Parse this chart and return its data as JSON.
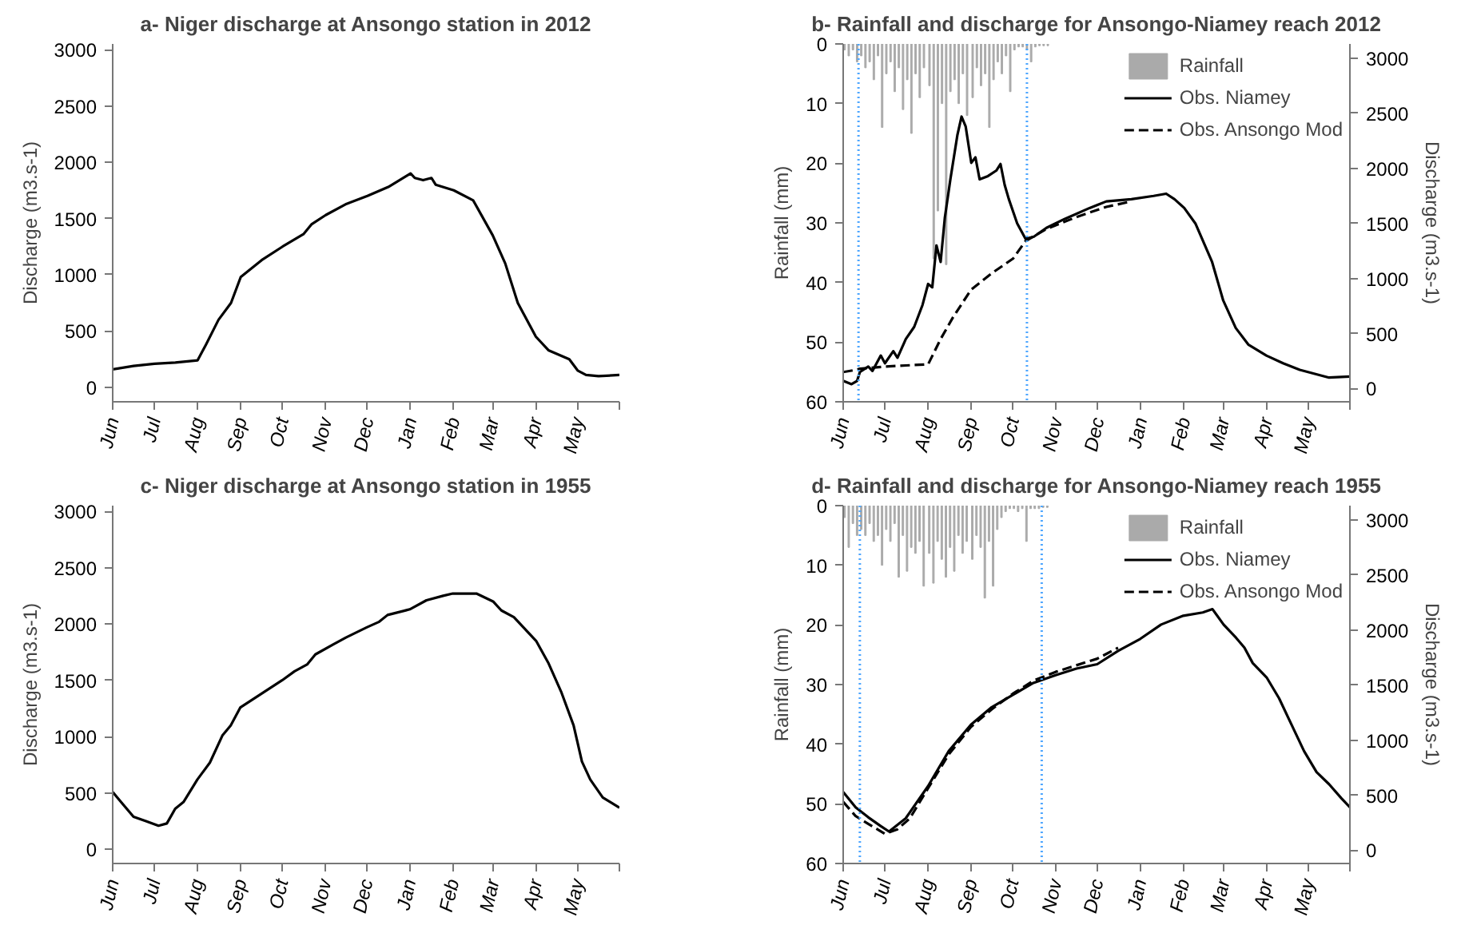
{
  "chart_data": [
    {
      "type": "line",
      "title": "a- Niger discharge at Ansongo station in 2012",
      "ylabel": "Discharge (m3.s-1)",
      "xlim": [
        "2012-06-01",
        "2013-05-31"
      ],
      "xticks": [
        {
          "value": "2012-06-01",
          "label": "Jun"
        },
        {
          "value": "2012-07-01",
          "label": "Jul"
        },
        {
          "value": "2012-08-01",
          "label": "Aug"
        },
        {
          "value": "2012-09-01",
          "label": "Sep"
        },
        {
          "value": "2012-10-01",
          "label": "Oct"
        },
        {
          "value": "2012-11-01",
          "label": "Nov"
        },
        {
          "value": "2012-12-01",
          "label": "Dec"
        },
        {
          "value": "2013-01-01",
          "label": "Jan"
        },
        {
          "value": "2013-02-01",
          "label": "Feb"
        },
        {
          "value": "2013-03-01",
          "label": "Mar"
        },
        {
          "value": "2013-04-01",
          "label": "Apr"
        },
        {
          "value": "2013-05-01",
          "label": "May"
        },
        {
          "value": "2013-05-31",
          "label": null
        }
      ],
      "ylim": [
        -128,
        3050
      ],
      "yticks": [
        0,
        500,
        1000,
        1500,
        2000,
        2500,
        3000
      ],
      "series": [
        {
          "color": "#000000",
          "x": [
            "2012-06-01",
            "2012-06-16",
            "2012-07-01",
            "2012-07-16",
            "2012-08-01",
            "2012-08-07",
            "2012-08-16",
            "2012-08-25",
            "2012-09-01",
            "2012-09-16",
            "2012-10-01",
            "2012-10-16",
            "2012-10-22",
            "2012-11-01",
            "2012-11-16",
            "2012-12-01",
            "2012-12-16",
            "2013-01-01",
            "2013-01-04",
            "2013-01-10",
            "2013-01-16",
            "2013-01-19",
            "2013-02-01",
            "2013-02-15",
            "2013-03-01",
            "2013-03-10",
            "2013-03-19",
            "2013-04-01",
            "2013-04-10",
            "2013-04-25",
            "2013-05-01",
            "2013-05-07",
            "2013-05-16",
            "2013-05-31"
          ],
          "values": [
            160,
            190,
            210,
            220,
            240,
            380,
            600,
            750,
            980,
            1130,
            1250,
            1360,
            1450,
            1530,
            1630,
            1700,
            1780,
            1900,
            1860,
            1840,
            1860,
            1800,
            1750,
            1660,
            1350,
            1100,
            750,
            450,
            330,
            250,
            150,
            110,
            100,
            110
          ]
        }
      ]
    },
    {
      "type": "line",
      "title": "b- Rainfall and discharge for Ansongo-Niamey reach 2012",
      "ylabel": "Rainfall (mm)",
      "y2label": "Discharge (m3.s-1)",
      "legend": "top right",
      "xlim": [
        "2012-06-01",
        "2013-05-31"
      ],
      "xticks": [
        {
          "value": "2012-06-01",
          "label": "Jun"
        },
        {
          "value": "2012-07-01",
          "label": "Jul"
        },
        {
          "value": "2012-08-01",
          "label": "Aug"
        },
        {
          "value": "2012-09-01",
          "label": "Sep"
        },
        {
          "value": "2012-10-01",
          "label": "Oct"
        },
        {
          "value": "2012-11-01",
          "label": "Nov"
        },
        {
          "value": "2012-12-01",
          "label": "Dec"
        },
        {
          "value": "2013-01-01",
          "label": "Jan"
        },
        {
          "value": "2013-02-01",
          "label": "Feb"
        },
        {
          "value": "2013-03-01",
          "label": "Mar"
        },
        {
          "value": "2013-04-01",
          "label": "Apr"
        },
        {
          "value": "2013-05-01",
          "label": "May"
        },
        {
          "value": "2013-05-31",
          "label": null
        }
      ],
      "ylim": [
        60,
        0
      ],
      "yticks": [
        0,
        10,
        20,
        30,
        40,
        50,
        60
      ],
      "y2lim": [
        -120,
        3130
      ],
      "y2ticks": [
        0,
        500,
        1000,
        1500,
        2000,
        2500,
        3000
      ],
      "ref_lines": [
        {
          "axis": "x",
          "value": "2012-06-12",
          "color": "#4da6ff",
          "line_style": "dotted"
        },
        {
          "axis": "x",
          "value": "2012-10-11",
          "color": "#4da6ff",
          "line_style": "dotted"
        }
      ],
      "series": [
        {
          "name": "Rainfall",
          "type": "bar",
          "color": "#aaaaaa",
          "x": [
            "2012-06-02",
            "2012-06-05",
            "2012-06-08",
            "2012-06-11",
            "2012-06-14",
            "2012-06-17",
            "2012-06-20",
            "2012-06-23",
            "2012-06-26",
            "2012-06-29",
            "2012-07-02",
            "2012-07-05",
            "2012-07-08",
            "2012-07-11",
            "2012-07-14",
            "2012-07-17",
            "2012-07-20",
            "2012-07-23",
            "2012-07-26",
            "2012-07-29",
            "2012-08-02",
            "2012-08-05",
            "2012-08-08",
            "2012-08-11",
            "2012-08-14",
            "2012-08-17",
            "2012-08-20",
            "2012-08-23",
            "2012-08-26",
            "2012-08-29",
            "2012-09-02",
            "2012-09-05",
            "2012-09-08",
            "2012-09-11",
            "2012-09-14",
            "2012-09-17",
            "2012-09-20",
            "2012-09-23",
            "2012-09-26",
            "2012-09-29",
            "2012-10-02",
            "2012-10-05",
            "2012-10-08",
            "2012-10-11",
            "2012-10-14",
            "2012-10-17",
            "2012-10-20",
            "2012-10-23",
            "2012-10-26"
          ],
          "values": [
            1,
            2,
            1,
            3,
            2,
            4,
            3,
            6,
            2,
            14,
            5,
            3,
            8,
            4,
            11,
            6,
            15,
            5,
            9,
            4,
            7,
            36,
            28,
            10,
            37,
            8,
            6,
            10,
            5,
            12,
            9,
            4,
            7,
            5,
            14,
            6,
            3,
            5,
            2,
            8,
            1,
            0.5,
            0.5,
            1,
            3,
            0.5,
            0.3,
            0.3,
            0.3
          ]
        },
        {
          "name": "Obs. Niamey",
          "axis": "y2",
          "color": "#000000",
          "line_style": "solid",
          "x": [
            "2012-06-01",
            "2012-06-07",
            "2012-06-11",
            "2012-06-13",
            "2012-06-19",
            "2012-06-22",
            "2012-06-28",
            "2012-07-01",
            "2012-07-07",
            "2012-07-10",
            "2012-07-16",
            "2012-07-22",
            "2012-07-28",
            "2012-08-01",
            "2012-08-04",
            "2012-08-07",
            "2012-08-10",
            "2012-08-13",
            "2012-08-17",
            "2012-08-22",
            "2012-08-25",
            "2012-08-28",
            "2012-09-01",
            "2012-09-04",
            "2012-09-07",
            "2012-09-13",
            "2012-09-19",
            "2012-09-22",
            "2012-09-25",
            "2012-09-28",
            "2012-10-04",
            "2012-10-10",
            "2012-10-16",
            "2012-10-25",
            "2012-11-07",
            "2012-11-25",
            "2012-12-07",
            "2012-12-25",
            "2013-01-10",
            "2013-01-19",
            "2013-01-25",
            "2013-02-01",
            "2013-02-09",
            "2013-02-21",
            "2013-03-01",
            "2013-03-10",
            "2013-03-19",
            "2013-04-01",
            "2013-04-13",
            "2013-04-25",
            "2013-05-16",
            "2013-05-31"
          ],
          "values": [
            70,
            40,
            70,
            150,
            200,
            160,
            300,
            230,
            340,
            280,
            450,
            560,
            760,
            950,
            920,
            1300,
            1150,
            1550,
            1900,
            2300,
            2470,
            2380,
            2050,
            2100,
            1900,
            1930,
            1980,
            2040,
            1850,
            1720,
            1500,
            1360,
            1380,
            1460,
            1540,
            1640,
            1700,
            1720,
            1750,
            1770,
            1720,
            1640,
            1500,
            1150,
            800,
            550,
            400,
            300,
            230,
            170,
            100,
            110
          ]
        },
        {
          "name": "Obs. Ansongo Mod",
          "axis": "y2",
          "color": "#000000",
          "line_style": "dashed",
          "x": [
            "2012-06-01",
            "2012-06-10",
            "2012-06-13",
            "2012-07-01",
            "2012-07-16",
            "2012-08-01",
            "2012-08-10",
            "2012-08-19",
            "2012-09-01",
            "2012-09-16",
            "2012-10-01",
            "2012-10-10",
            "2012-10-25",
            "2012-11-16",
            "2012-12-07",
            "2012-12-25"
          ],
          "values": [
            150,
            170,
            180,
            200,
            210,
            220,
            450,
            650,
            900,
            1050,
            1180,
            1340,
            1450,
            1560,
            1650,
            1700
          ]
        }
      ]
    },
    {
      "type": "line",
      "title": "c- Niger discharge at Ansongo station in 1955",
      "ylabel": "Discharge (m3.s-1)",
      "xlim": [
        "1955-06-01",
        "1956-05-31"
      ],
      "xticks": [
        {
          "value": "1955-06-01",
          "label": "Jun"
        },
        {
          "value": "1955-07-01",
          "label": "Jul"
        },
        {
          "value": "1955-08-01",
          "label": "Aug"
        },
        {
          "value": "1955-09-01",
          "label": "Sep"
        },
        {
          "value": "1955-10-01",
          "label": "Oct"
        },
        {
          "value": "1955-11-01",
          "label": "Nov"
        },
        {
          "value": "1955-12-01",
          "label": "Dec"
        },
        {
          "value": "1956-01-01",
          "label": "Jan"
        },
        {
          "value": "1956-02-01",
          "label": "Feb"
        },
        {
          "value": "1956-03-01",
          "label": "Mar"
        },
        {
          "value": "1956-04-01",
          "label": "Apr"
        },
        {
          "value": "1956-05-01",
          "label": "May"
        },
        {
          "value": "1956-05-31",
          "label": null
        }
      ],
      "ylim": [
        -125,
        3050
      ],
      "yticks": [
        0,
        500,
        1000,
        1500,
        2000,
        2500,
        3000
      ],
      "series": [
        {
          "color": "#000000",
          "x": [
            "1955-06-01",
            "1955-06-07",
            "1955-06-16",
            "1955-06-25",
            "1955-07-04",
            "1955-07-10",
            "1955-07-16",
            "1955-07-22",
            "1955-08-01",
            "1955-08-10",
            "1955-08-19",
            "1955-08-25",
            "1955-09-01",
            "1955-09-16",
            "1955-10-01",
            "1955-10-10",
            "1955-10-19",
            "1955-10-25",
            "1955-11-07",
            "1955-11-16",
            "1955-12-01",
            "1955-12-10",
            "1955-12-16",
            "1956-01-01",
            "1956-01-13",
            "1956-01-25",
            "1956-02-01",
            "1956-02-18",
            "1956-03-01",
            "1956-03-07",
            "1956-03-16",
            "1956-04-01",
            "1956-04-10",
            "1956-04-19",
            "1956-04-28",
            "1956-05-04",
            "1956-05-10",
            "1956-05-19",
            "1956-05-31"
          ],
          "values": [
            510,
            420,
            290,
            250,
            210,
            230,
            360,
            420,
            620,
            770,
            1010,
            1100,
            1260,
            1380,
            1500,
            1580,
            1640,
            1730,
            1820,
            1880,
            1970,
            2020,
            2080,
            2130,
            2210,
            2250,
            2270,
            2270,
            2200,
            2120,
            2060,
            1850,
            1650,
            1400,
            1100,
            780,
            620,
            460,
            370
          ]
        }
      ]
    },
    {
      "type": "line",
      "title": "d- Rainfall and discharge for Ansongo-Niamey reach 1955",
      "ylabel": "Rainfall (mm)",
      "y2label": "Discharge (m3.s-1)",
      "legend": "top right",
      "xlim": [
        "1955-06-01",
        "1956-05-31"
      ],
      "xticks": [
        {
          "value": "1955-06-01",
          "label": "Jun"
        },
        {
          "value": "1955-07-01",
          "label": "Jul"
        },
        {
          "value": "1955-08-01",
          "label": "Aug"
        },
        {
          "value": "1955-09-01",
          "label": "Sep"
        },
        {
          "value": "1955-10-01",
          "label": "Oct"
        },
        {
          "value": "1955-11-01",
          "label": "Nov"
        },
        {
          "value": "1955-12-01",
          "label": "Dec"
        },
        {
          "value": "1956-01-01",
          "label": "Jan"
        },
        {
          "value": "1956-02-01",
          "label": "Feb"
        },
        {
          "value": "1956-03-01",
          "label": "Mar"
        },
        {
          "value": "1956-04-01",
          "label": "Apr"
        },
        {
          "value": "1956-05-01",
          "label": "May"
        },
        {
          "value": "1956-05-31",
          "label": null
        }
      ],
      "ylim": [
        60,
        0
      ],
      "yticks": [
        0,
        10,
        20,
        30,
        40,
        50,
        60
      ],
      "y2lim": [
        -120,
        3130
      ],
      "y2ticks": [
        0,
        500,
        1000,
        1500,
        2000,
        2500,
        3000
      ],
      "ref_lines": [
        {
          "axis": "x",
          "value": "1955-06-13",
          "color": "#4da6ff",
          "line_style": "dotted"
        },
        {
          "axis": "x",
          "value": "1955-10-22",
          "color": "#4da6ff",
          "line_style": "dotted"
        }
      ],
      "series": [
        {
          "name": "Rainfall",
          "type": "bar",
          "color": "#aaaaaa",
          "x": [
            "1955-06-02",
            "1955-06-05",
            "1955-06-08",
            "1955-06-11",
            "1955-06-14",
            "1955-06-17",
            "1955-06-20",
            "1955-06-23",
            "1955-06-26",
            "1955-06-29",
            "1955-07-02",
            "1955-07-05",
            "1955-07-08",
            "1955-07-11",
            "1955-07-14",
            "1955-07-17",
            "1955-07-20",
            "1955-07-23",
            "1955-07-26",
            "1955-07-29",
            "1955-08-02",
            "1955-08-05",
            "1955-08-08",
            "1955-08-11",
            "1955-08-14",
            "1955-08-17",
            "1955-08-20",
            "1955-08-23",
            "1955-08-26",
            "1955-08-29",
            "1955-09-02",
            "1955-09-05",
            "1955-09-08",
            "1955-09-11",
            "1955-09-14",
            "1955-09-17",
            "1955-09-20",
            "1955-09-23",
            "1955-09-26",
            "1955-09-29",
            "1955-10-02",
            "1955-10-05",
            "1955-10-08",
            "1955-10-11",
            "1955-10-14",
            "1955-10-17",
            "1955-10-20",
            "1955-10-23",
            "1955-10-26"
          ],
          "values": [
            2,
            7,
            3,
            5,
            4,
            5,
            3,
            6,
            5,
            10,
            4,
            6,
            3,
            12,
            5,
            11,
            7,
            8,
            6,
            13.5,
            8,
            13,
            6,
            9,
            12,
            7,
            11,
            5,
            8,
            6,
            9,
            5,
            7,
            15.5,
            6,
            13.5,
            4,
            2,
            1,
            0.5,
            0.5,
            1,
            0.5,
            6,
            0.5,
            0.5,
            0.5,
            0.3,
            0.3
          ]
        },
        {
          "name": "Obs. Niamey",
          "axis": "y2",
          "color": "#000000",
          "line_style": "solid",
          "x": [
            "1955-06-01",
            "1955-06-10",
            "1955-06-19",
            "1955-06-28",
            "1955-07-04",
            "1955-07-16",
            "1955-08-01",
            "1955-08-16",
            "1955-09-01",
            "1955-09-16",
            "1955-10-01",
            "1955-10-16",
            "1955-11-01",
            "1955-11-16",
            "1955-12-01",
            "1955-12-16",
            "1956-01-01",
            "1956-01-16",
            "1956-02-01",
            "1956-02-15",
            "1956-02-22",
            "1956-03-01",
            "1956-03-10",
            "1956-03-16",
            "1956-03-22",
            "1956-04-01",
            "1956-04-10",
            "1956-04-19",
            "1956-04-28",
            "1956-05-07",
            "1956-05-16",
            "1956-05-25",
            "1956-05-31"
          ],
          "values": [
            530,
            390,
            300,
            220,
            170,
            290,
            580,
            900,
            1140,
            1300,
            1410,
            1520,
            1590,
            1650,
            1690,
            1810,
            1920,
            2050,
            2130,
            2160,
            2190,
            2050,
            1930,
            1840,
            1700,
            1570,
            1380,
            1140,
            900,
            710,
            600,
            470,
            390
          ]
        },
        {
          "name": "Obs. Ansongo Mod",
          "axis": "y2",
          "color": "#000000",
          "line_style": "dashed",
          "x": [
            "1955-06-01",
            "1955-06-10",
            "1955-06-19",
            "1955-07-01",
            "1955-07-10",
            "1955-07-19",
            "1955-08-01",
            "1955-08-16",
            "1955-09-01",
            "1955-09-16",
            "1955-10-01",
            "1955-10-16",
            "1955-11-01",
            "1955-11-16",
            "1955-12-01",
            "1955-12-16"
          ],
          "values": [
            440,
            310,
            240,
            150,
            190,
            290,
            560,
            870,
            1120,
            1280,
            1420,
            1540,
            1620,
            1680,
            1740,
            1840
          ]
        }
      ]
    }
  ]
}
